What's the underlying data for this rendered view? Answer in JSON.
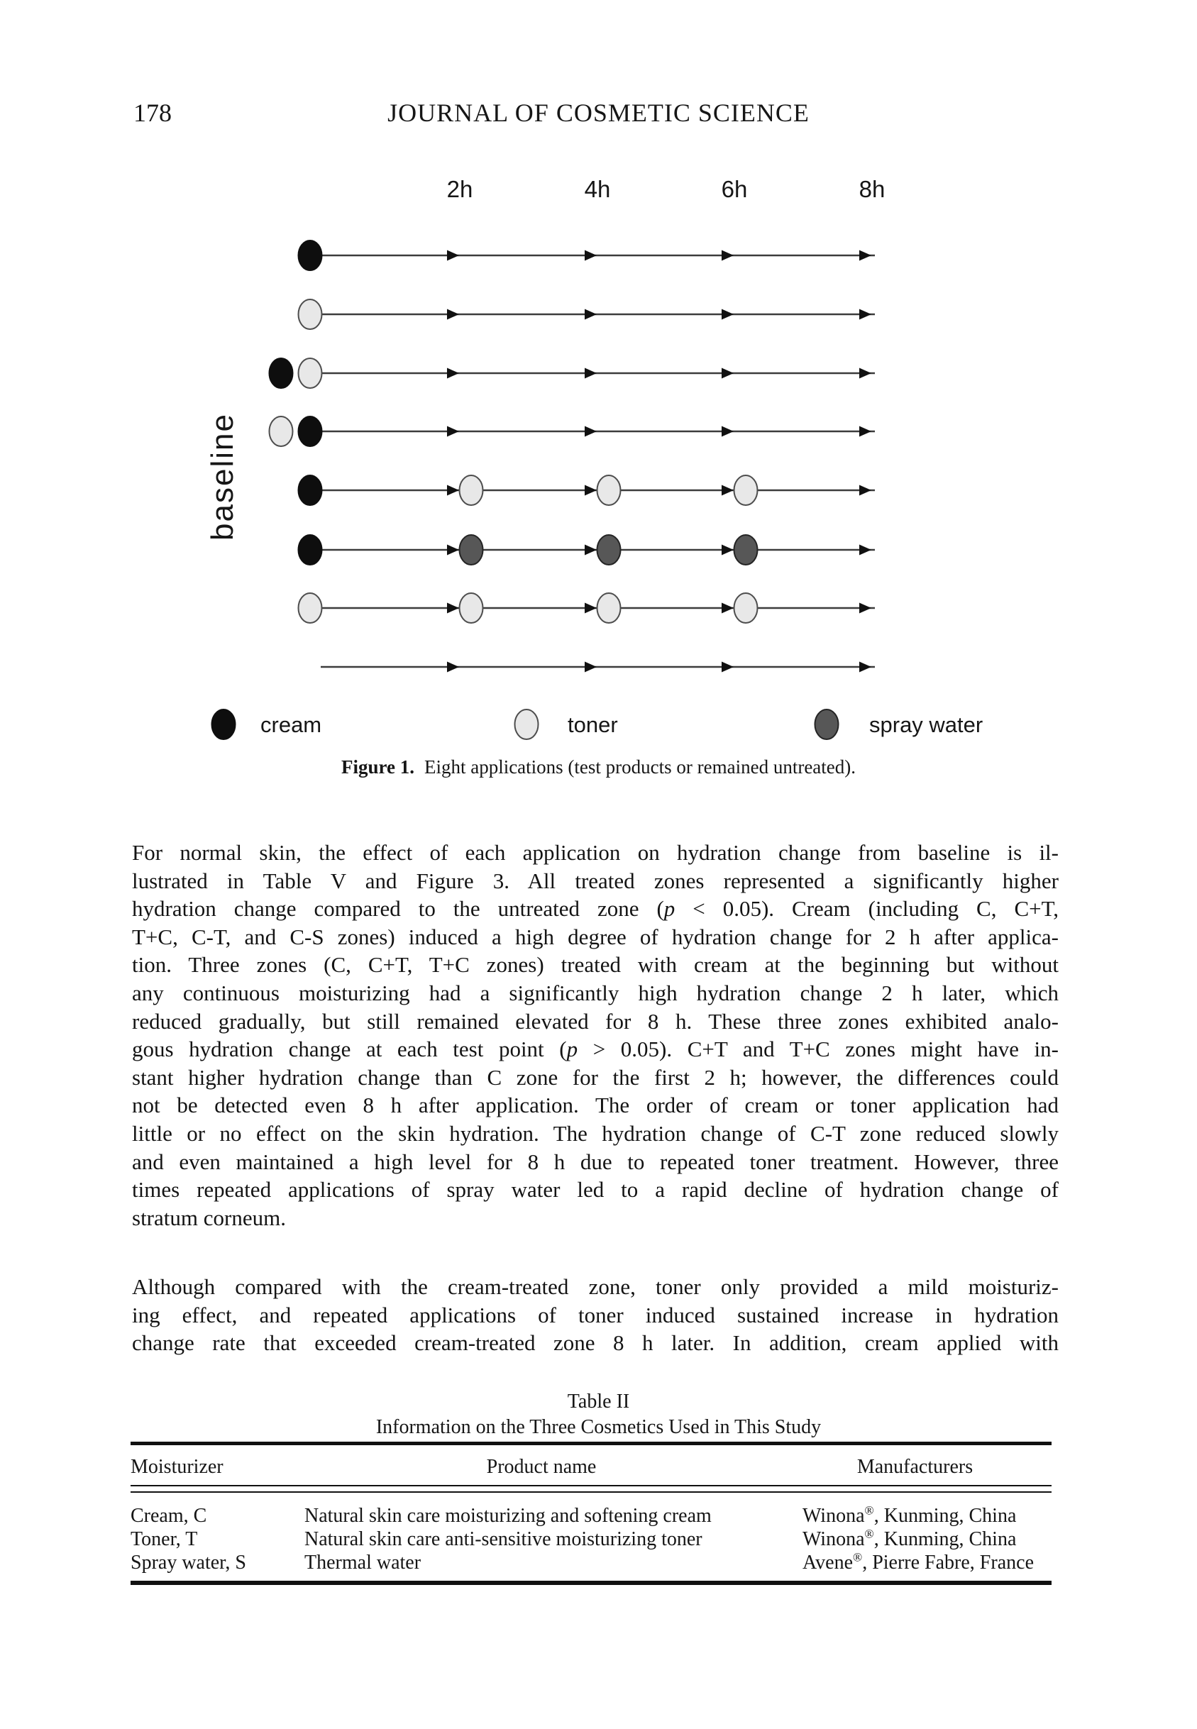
{
  "page": {
    "number": "178",
    "journal_header": "JOURNAL OF COSMETIC SCIENCE"
  },
  "figure": {
    "time_labels": [
      "2h",
      "4h",
      "6h",
      "8h"
    ],
    "baseline_label": "baseline",
    "legend": [
      {
        "key": "cream",
        "label": "cream"
      },
      {
        "key": "toner",
        "label": "toner"
      },
      {
        "key": "spray_water",
        "label": "spray water"
      }
    ],
    "colors": {
      "cream": "#0e0e0e",
      "toner": "#e8e8e8",
      "toner_stroke": "#4d4d4d",
      "spray_water": "#575757",
      "spray_water_stroke": "#242424",
      "line": "#3c3c3c",
      "arrow": "#111111"
    },
    "rows": [
      {
        "baseline": [
          "cream"
        ],
        "timepoints": [
          null,
          null,
          null
        ]
      },
      {
        "baseline": [
          "toner"
        ],
        "timepoints": [
          null,
          null,
          null
        ]
      },
      {
        "baseline": [
          "cream",
          "toner"
        ],
        "timepoints": [
          null,
          null,
          null
        ]
      },
      {
        "baseline": [
          "toner",
          "cream"
        ],
        "timepoints": [
          null,
          null,
          null
        ]
      },
      {
        "baseline": [
          "cream"
        ],
        "timepoints": [
          "toner",
          "toner",
          "toner"
        ]
      },
      {
        "baseline": [
          "cream"
        ],
        "timepoints": [
          "spray_water",
          "spray_water",
          "spray_water"
        ]
      },
      {
        "baseline": [
          "toner"
        ],
        "timepoints": [
          "toner",
          "toner",
          "toner"
        ]
      },
      {
        "baseline": [],
        "timepoints": [
          null,
          null,
          null
        ]
      }
    ],
    "caption_label": "Figure 1.",
    "caption_text": "Eight applications (test products or remained untreated)."
  },
  "body": {
    "paragraphs": [
      {
        "flush_last": false,
        "lines": [
          "For normal skin, the effect of each application on hydration change from baseline is il-",
          "lustrated in Table V and Figure 3. All treated zones represented a significantly higher",
          "hydration change compared to the untreated zone (p < 0.05). Cream (including C, C+T,",
          "T+C, C-T, and C-S zones) induced a high degree of hydration change for 2 h after applica-",
          "tion. Three zones (C, C+T, T+C zones) treated with cream at the beginning but without",
          "any continuous moisturizing had a significantly high hydration change 2 h later, which",
          "reduced gradually, but still remained elevated for 8 h. These three zones exhibited analo-",
          "gous hydration change at each test point (p > 0.05). C+T and T+C zones might have in-",
          "stant higher hydration change than C zone for the first 2 h; however, the differences could",
          "not be detected even 8 h after application. The order of cream or toner application had",
          "little or no effect on the skin hydration. The hydration change of C-T zone reduced slowly",
          "and even maintained a high level for 8 h due to repeated toner treatment. However, three",
          "times repeated applications of spray water led to a rapid decline of hydration change of",
          "stratum corneum."
        ]
      },
      {
        "flush_last": true,
        "lines": [
          "Although compared with the cream-treated zone, toner only provided a mild moisturiz-",
          "ing effect, and repeated applications of toner induced sustained increase in hydration",
          "change rate that exceeded cream-treated zone 8 h later. In addition, cream applied with"
        ]
      }
    ]
  },
  "table": {
    "title": "Table II",
    "subtitle": "Information on the Three Cosmetics Used in This Study",
    "columns": [
      "Moisturizer",
      "Product name",
      "Manufacturers"
    ],
    "rows": [
      [
        "Cream, C",
        "Natural skin care moisturizing and softening cream",
        "Winona®, Kunming, China"
      ],
      [
        "Toner, T",
        "Natural skin care anti-sensitive moisturizing toner",
        "Winona®, Kunming, China"
      ],
      [
        "Spray water, S",
        "Thermal water",
        "Avene®, Pierre Fabre, France"
      ]
    ]
  }
}
